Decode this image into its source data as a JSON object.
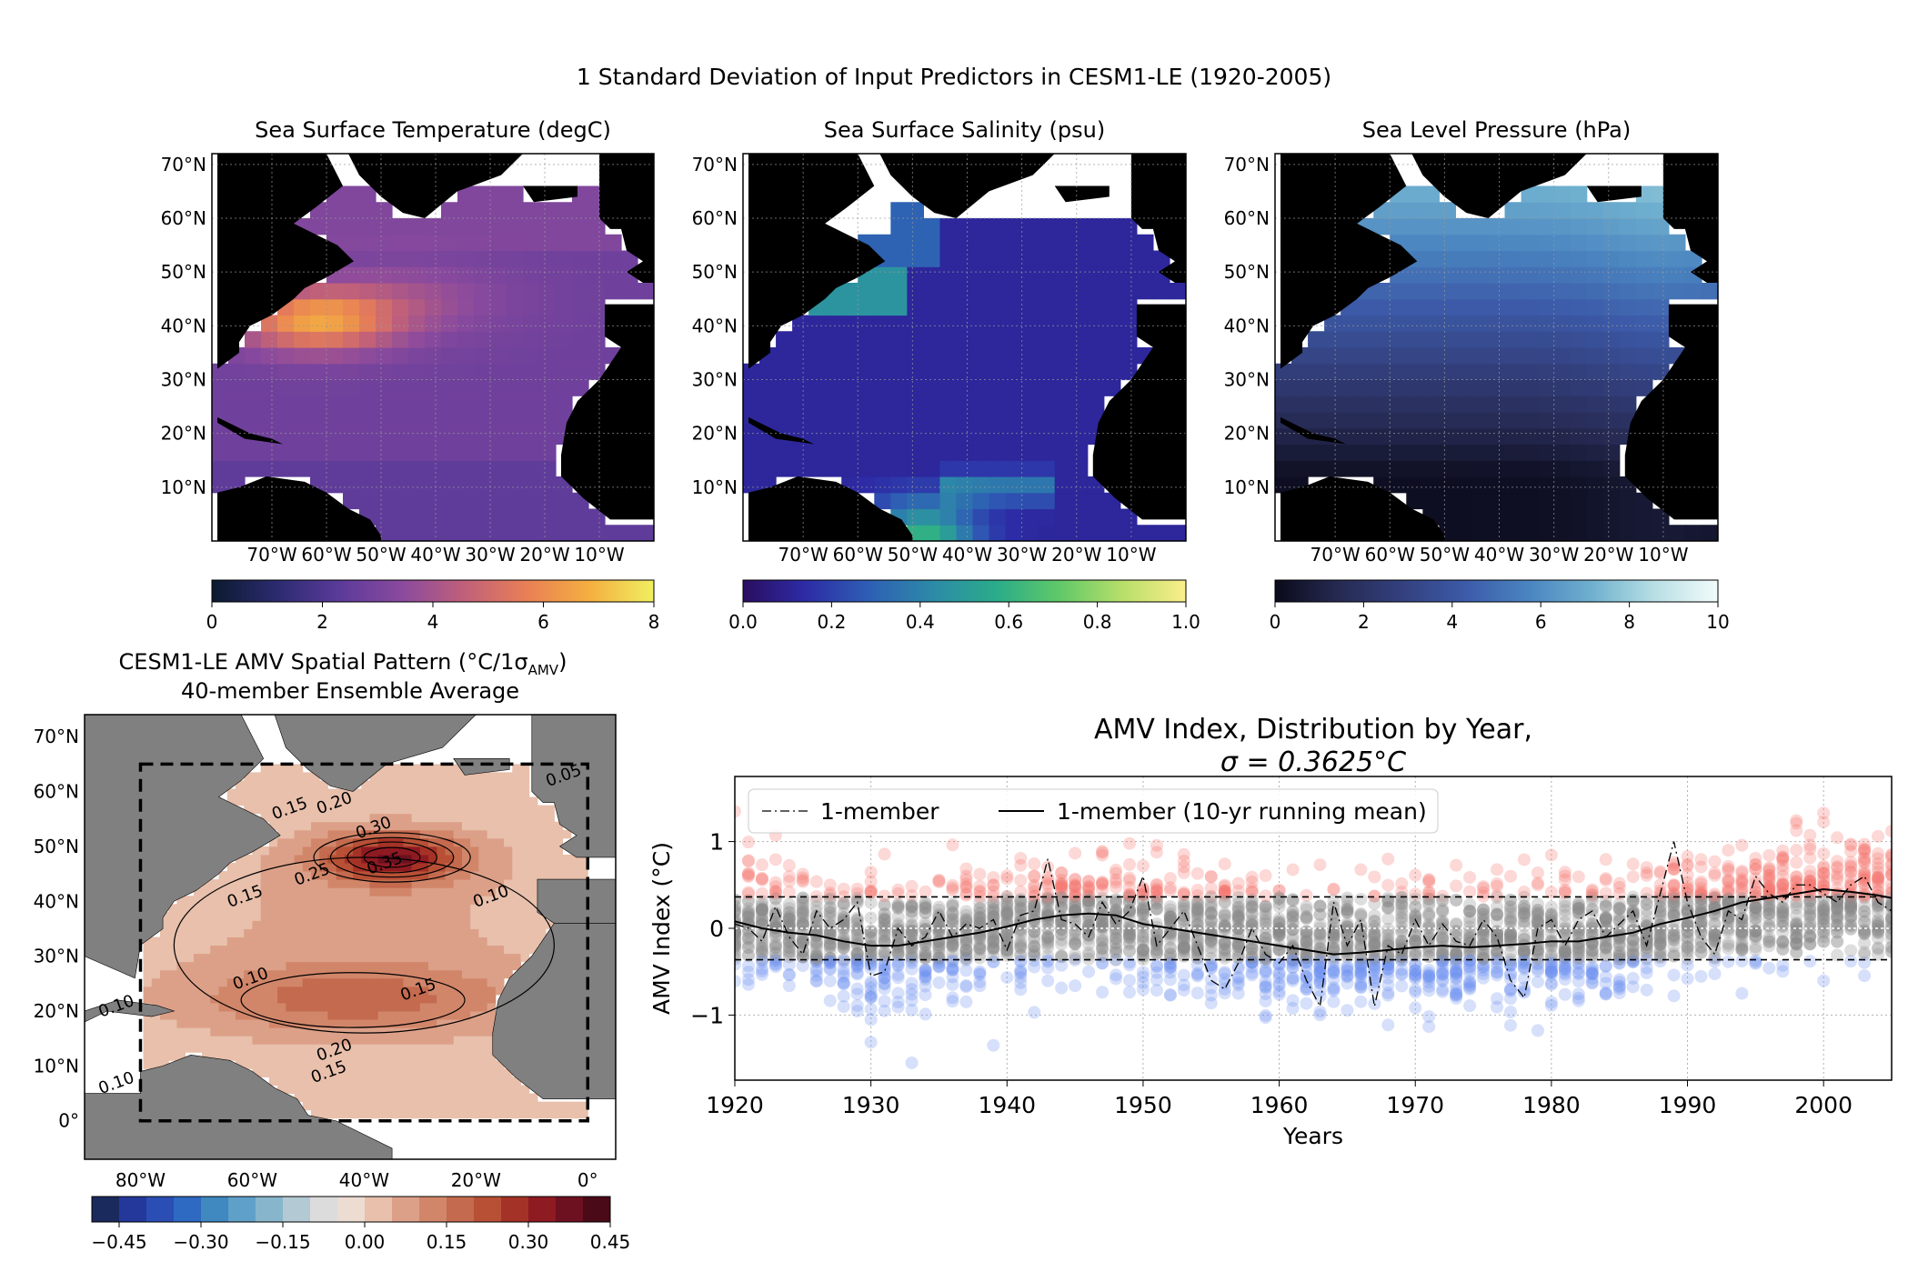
{
  "figure": {
    "suptitle": "1 Standard Deviation of Input Predictors in CESM1-LE (1920-2005)"
  },
  "maps": [
    {
      "title": "Sea Surface Temperature (degC)",
      "cmap": [
        "#0b1a2e",
        "#2a2a6e",
        "#5a3a9a",
        "#8a4a9e",
        "#c0607a",
        "#e98055",
        "#f4b040",
        "#f0f060"
      ],
      "cbar_ticks": [
        "0",
        "2",
        "4",
        "6",
        "8"
      ],
      "cbar_range": [
        0,
        8
      ],
      "lat_labels": [
        "70°N",
        "60°N",
        "50°N",
        "40°N",
        "30°N",
        "20°N",
        "10°N"
      ],
      "lon_labels": [
        "70°W",
        "60°W",
        "50°W",
        "40°W",
        "30°W",
        "20°W",
        "10°W"
      ]
    },
    {
      "title": "Sea Surface Salinity (psu)",
      "cmap": [
        "#2a0d60",
        "#2d2ca6",
        "#2e5fb4",
        "#2d8aa8",
        "#2aac8a",
        "#60c868",
        "#b8df6a",
        "#fbee8a"
      ],
      "cbar_ticks": [
        "0.0",
        "0.2",
        "0.4",
        "0.6",
        "0.8",
        "1.0"
      ],
      "cbar_range": [
        0,
        1
      ],
      "lat_labels": [
        "70°N",
        "60°N",
        "50°N",
        "40°N",
        "30°N",
        "20°N",
        "10°N"
      ],
      "lon_labels": [
        "70°W",
        "60°W",
        "50°W",
        "40°W",
        "30°W",
        "20°W",
        "10°W"
      ]
    },
    {
      "title": "Sea Level Pressure (hPa)",
      "cmap": [
        "#0a0a1a",
        "#262a52",
        "#33407e",
        "#3c5aa8",
        "#4a84c0",
        "#6fb0cf",
        "#b8dfe4",
        "#f2fbfb"
      ],
      "cbar_ticks": [
        "0",
        "2",
        "4",
        "6",
        "8",
        "10"
      ],
      "cbar_range": [
        0,
        10
      ],
      "lat_labels": [
        "70°N",
        "60°N",
        "50°N",
        "40°N",
        "30°N",
        "20°N",
        "10°N"
      ],
      "lon_labels": [
        "70°W",
        "60°W",
        "50°W",
        "40°W",
        "30°W",
        "20°W",
        "10°W"
      ]
    }
  ],
  "amv_map": {
    "title_line1": "CESM1-LE AMV Spatial Pattern (°C/1σ",
    "title_sub": "AMV",
    "title_close": ")",
    "title_line2": "40-member Ensemble Average",
    "lat_labels": [
      "70°N",
      "60°N",
      "50°N",
      "40°N",
      "30°N",
      "20°N",
      "10°N",
      "0°"
    ],
    "lon_labels": [
      "80°W",
      "60°W",
      "40°W",
      "20°W",
      "0°"
    ],
    "contour_labels": [
      "0.05",
      "0.15",
      "0.20",
      "0.30",
      "0.35",
      "0.25",
      "0.15",
      "0.10",
      "0.10",
      "0.10",
      "0.20",
      "0.15",
      "0.15",
      "0.10"
    ],
    "cbar_ticks": [
      "−0.45",
      "−0.30",
      "−0.15",
      "0.00",
      "0.15",
      "0.30",
      "0.45"
    ],
    "cbar_colors": [
      "#1b2a5c",
      "#23389a",
      "#2a4eb4",
      "#2e69c2",
      "#3f88c0",
      "#5fa0c8",
      "#87b6cc",
      "#b3c9d3",
      "#dcdcdc",
      "#ecdcd2",
      "#e8c0ac",
      "#dca088",
      "#d1866a",
      "#c46a4e",
      "#b85036",
      "#a53226",
      "#8e1a22",
      "#6d1020",
      "#4a0a18"
    ]
  },
  "chart_data": {
    "type": "scatter",
    "title": "AMV Index, Distribution by Year,",
    "subtitle": "σ = 0.3625°C",
    "xlabel": "Years",
    "ylabel": "AMV Index (°C)",
    "xlim": [
      1920,
      2005
    ],
    "ylim": [
      -1.75,
      1.75
    ],
    "xticks": [
      1920,
      1930,
      1940,
      1950,
      1960,
      1970,
      1980,
      1990,
      2000
    ],
    "yticks": [
      -1,
      0,
      1
    ],
    "threshold": 0.3625,
    "grid": true,
    "legend_placement": "upper-left",
    "colors": {
      "positive": "#f4736a",
      "negative": "#6a8ff0",
      "neutral": "#8a8a8a"
    },
    "series": [
      {
        "name": "1-member",
        "style": "dashdot",
        "x": [
          1920,
          1921,
          1922,
          1923,
          1924,
          1925,
          1926,
          1927,
          1928,
          1929,
          1930,
          1931,
          1932,
          1933,
          1934,
          1935,
          1936,
          1937,
          1938,
          1939,
          1940,
          1941,
          1942,
          1943,
          1944,
          1945,
          1946,
          1947,
          1948,
          1949,
          1950,
          1951,
          1952,
          1953,
          1954,
          1955,
          1956,
          1957,
          1958,
          1959,
          1960,
          1961,
          1962,
          1963,
          1964,
          1965,
          1966,
          1967,
          1968,
          1969,
          1970,
          1971,
          1972,
          1973,
          1974,
          1975,
          1976,
          1977,
          1978,
          1979,
          1980,
          1981,
          1982,
          1983,
          1984,
          1985,
          1986,
          1987,
          1988,
          1989,
          1990,
          1991,
          1992,
          1993,
          1994,
          1995,
          1996,
          1997,
          1998,
          1999,
          2000,
          2001,
          2002,
          2003,
          2004,
          2005
        ],
        "values": [
          0.05,
          0.0,
          -0.15,
          0.25,
          -0.1,
          -0.3,
          0.2,
          0.0,
          0.1,
          0.3,
          -0.55,
          -0.5,
          0.0,
          -0.2,
          -0.1,
          0.2,
          -0.1,
          0.05,
          0.0,
          0.1,
          -0.25,
          0.15,
          0.2,
          0.8,
          0.1,
          0.05,
          -0.1,
          0.3,
          0.05,
          0.2,
          0.6,
          -0.2,
          0.0,
          0.2,
          -0.2,
          -0.6,
          -0.7,
          -0.4,
          0.0,
          -0.3,
          -0.4,
          -0.2,
          -0.6,
          -0.9,
          0.3,
          -0.2,
          0.1,
          -0.9,
          -0.2,
          -0.3,
          0.1,
          -0.2,
          0.05,
          -0.15,
          -0.2,
          0.1,
          -0.1,
          -0.6,
          -0.8,
          0.0,
          0.1,
          -0.2,
          0.1,
          0.2,
          -0.1,
          0.05,
          0.2,
          -0.2,
          0.4,
          1.0,
          0.3,
          -0.1,
          -0.3,
          0.2,
          0.1,
          0.6,
          0.4,
          0.3,
          0.5,
          0.5,
          0.4,
          0.3,
          0.5,
          0.6,
          0.3,
          0.2
        ]
      },
      {
        "name": "1-member (10-yr running mean)",
        "style": "solid",
        "x": [
          1920,
          1922,
          1924,
          1926,
          1928,
          1930,
          1932,
          1934,
          1936,
          1938,
          1940,
          1942,
          1944,
          1946,
          1948,
          1950,
          1952,
          1954,
          1956,
          1958,
          1960,
          1962,
          1964,
          1966,
          1968,
          1970,
          1972,
          1974,
          1976,
          1978,
          1980,
          1982,
          1984,
          1986,
          1988,
          1990,
          1992,
          1994,
          1996,
          1998,
          2000,
          2002,
          2004,
          2005
        ],
        "values": [
          0.08,
          0.0,
          -0.05,
          -0.08,
          -0.15,
          -0.2,
          -0.2,
          -0.15,
          -0.1,
          -0.05,
          0.02,
          0.1,
          0.15,
          0.17,
          0.15,
          0.05,
          0.0,
          -0.05,
          -0.1,
          -0.15,
          -0.2,
          -0.25,
          -0.3,
          -0.28,
          -0.25,
          -0.22,
          -0.2,
          -0.22,
          -0.2,
          -0.18,
          -0.15,
          -0.15,
          -0.1,
          -0.05,
          0.05,
          0.12,
          0.2,
          0.3,
          0.35,
          0.4,
          0.45,
          0.42,
          0.38,
          0.35
        ]
      }
    ]
  }
}
